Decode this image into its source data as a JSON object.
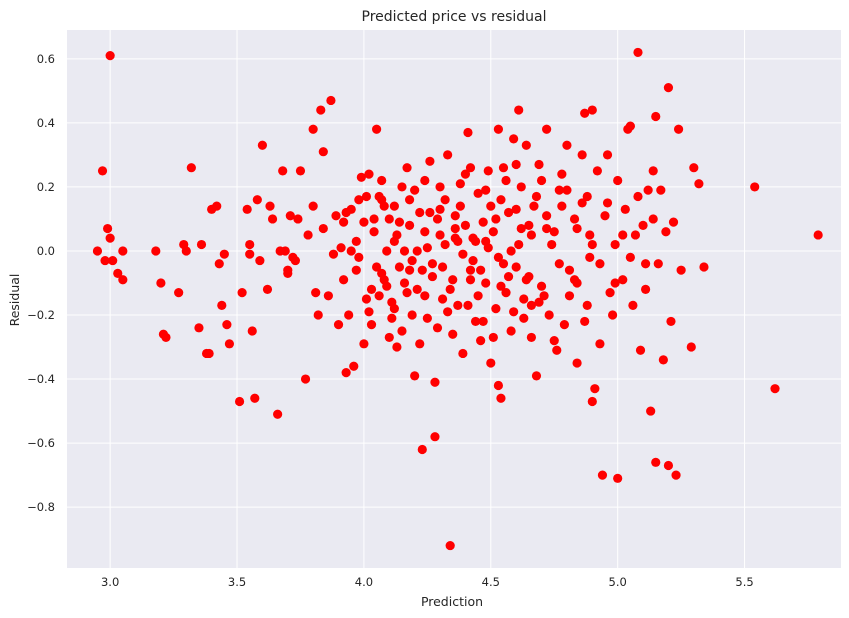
{
  "chart_data": {
    "type": "scatter",
    "title": "Predicted price vs residual",
    "xlabel": "Prediction",
    "ylabel": "Residual",
    "xlim": [
      2.83,
      5.88
    ],
    "ylim": [
      -0.99,
      0.69
    ],
    "xticks": [
      3.0,
      3.5,
      4.0,
      4.5,
      5.0,
      5.5
    ],
    "xtick_labels": [
      "3.0",
      "3.5",
      "4.0",
      "4.5",
      "5.0",
      "5.5"
    ],
    "yticks": [
      -0.8,
      -0.6,
      -0.4,
      -0.2,
      0.0,
      0.2,
      0.4,
      0.6
    ],
    "ytick_labels": [
      "−0.8",
      "−0.6",
      "−0.4",
      "−0.2",
      "0.0",
      "0.2",
      "0.4",
      "0.6"
    ],
    "grid": true,
    "background": "#EAEAF2",
    "point_color": "#FF0000",
    "points": [
      [
        3.0,
        0.61
      ],
      [
        2.97,
        0.25
      ],
      [
        2.95,
        0.0
      ],
      [
        2.98,
        -0.03
      ],
      [
        2.99,
        0.07
      ],
      [
        3.0,
        0.04
      ],
      [
        3.01,
        -0.03
      ],
      [
        3.03,
        -0.07
      ],
      [
        3.05,
        -0.09
      ],
      [
        3.05,
        0.0
      ],
      [
        3.18,
        0.0
      ],
      [
        3.2,
        -0.1
      ],
      [
        3.21,
        -0.26
      ],
      [
        3.22,
        -0.27
      ],
      [
        3.27,
        -0.13
      ],
      [
        3.29,
        0.02
      ],
      [
        3.3,
        0.0
      ],
      [
        3.32,
        0.26
      ],
      [
        3.35,
        -0.24
      ],
      [
        3.36,
        0.02
      ],
      [
        3.38,
        -0.32
      ],
      [
        3.39,
        -0.32
      ],
      [
        3.4,
        0.13
      ],
      [
        3.42,
        0.14
      ],
      [
        3.43,
        -0.04
      ],
      [
        3.44,
        -0.17
      ],
      [
        3.45,
        -0.01
      ],
      [
        3.46,
        -0.23
      ],
      [
        3.47,
        -0.29
      ],
      [
        3.51,
        -0.47
      ],
      [
        3.52,
        -0.13
      ],
      [
        3.54,
        0.13
      ],
      [
        3.55,
        -0.01
      ],
      [
        3.55,
        0.02
      ],
      [
        3.56,
        -0.25
      ],
      [
        3.57,
        -0.46
      ],
      [
        3.58,
        0.16
      ],
      [
        3.59,
        -0.03
      ],
      [
        3.6,
        0.33
      ],
      [
        3.62,
        -0.12
      ],
      [
        3.63,
        0.14
      ],
      [
        3.64,
        0.1
      ],
      [
        3.66,
        -0.51
      ],
      [
        3.67,
        -0.0
      ],
      [
        3.68,
        0.25
      ],
      [
        3.69,
        0.0
      ],
      [
        3.7,
        -0.06
      ],
      [
        3.7,
        -0.07
      ],
      [
        3.71,
        0.11
      ],
      [
        3.72,
        -0.02
      ],
      [
        3.73,
        -0.03
      ],
      [
        3.74,
        0.1
      ],
      [
        3.75,
        0.25
      ],
      [
        3.77,
        -0.4
      ],
      [
        3.78,
        0.05
      ],
      [
        3.8,
        0.14
      ],
      [
        3.8,
        0.38
      ],
      [
        3.81,
        -0.13
      ],
      [
        3.82,
        -0.2
      ],
      [
        3.83,
        0.44
      ],
      [
        3.84,
        0.31
      ],
      [
        3.84,
        0.07
      ],
      [
        3.86,
        -0.14
      ],
      [
        3.87,
        0.47
      ],
      [
        3.88,
        -0.01
      ],
      [
        3.89,
        0.11
      ],
      [
        3.9,
        -0.23
      ],
      [
        3.91,
        0.01
      ],
      [
        3.92,
        0.09
      ],
      [
        3.93,
        0.12
      ],
      [
        3.93,
        -0.38
      ],
      [
        3.94,
        -0.2
      ],
      [
        3.95,
        0.0
      ],
      [
        3.96,
        -0.36
      ],
      [
        3.97,
        0.03
      ],
      [
        3.98,
        0.16
      ],
      [
        3.99,
        0.23
      ],
      [
        4.0,
        -0.29
      ],
      [
        4.01,
        0.17
      ],
      [
        4.02,
        -0.19
      ],
      [
        4.03,
        -0.12
      ],
      [
        4.04,
        0.06
      ],
      [
        4.05,
        0.38
      ],
      [
        4.06,
        -0.14
      ],
      [
        4.07,
        0.22
      ],
      [
        4.08,
        -0.09
      ],
      [
        4.09,
        0.0
      ],
      [
        4.1,
        0.1
      ],
      [
        4.11,
        -0.16
      ],
      [
        4.12,
        0.14
      ],
      [
        4.13,
        -0.3
      ],
      [
        4.14,
        -0.05
      ],
      [
        4.15,
        0.2
      ],
      [
        4.16,
        -0.1
      ],
      [
        4.17,
        0.26
      ],
      [
        4.18,
        0.16
      ],
      [
        4.19,
        -0.2
      ],
      [
        4.2,
        -0.39
      ],
      [
        4.21,
        0.0
      ],
      [
        4.22,
        0.12
      ],
      [
        4.23,
        -0.62
      ],
      [
        4.24,
        0.06
      ],
      [
        4.25,
        -0.21
      ],
      [
        4.26,
        0.28
      ],
      [
        4.27,
        -0.04
      ],
      [
        4.28,
        -0.41
      ],
      [
        4.28,
        -0.58
      ],
      [
        4.29,
        0.1
      ],
      [
        4.3,
        0.2
      ],
      [
        4.31,
        -0.15
      ],
      [
        4.32,
        0.02
      ],
      [
        4.33,
        0.3
      ],
      [
        4.34,
        -0.92
      ],
      [
        4.35,
        -0.26
      ],
      [
        4.36,
        0.07
      ],
      [
        4.37,
        -0.17
      ],
      [
        4.38,
        0.14
      ],
      [
        4.39,
        -0.32
      ],
      [
        4.4,
        0.24
      ],
      [
        4.41,
        0.37
      ],
      [
        4.42,
        -0.06
      ],
      [
        4.43,
        0.04
      ],
      [
        4.44,
        -0.22
      ],
      [
        4.45,
        0.18
      ],
      [
        4.46,
        -0.28
      ],
      [
        4.47,
        0.09
      ],
      [
        4.48,
        -0.1
      ],
      [
        4.49,
        0.25
      ],
      [
        4.5,
        -0.35
      ],
      [
        4.51,
        0.06
      ],
      [
        4.52,
        -0.18
      ],
      [
        4.53,
        0.38
      ],
      [
        4.53,
        -0.42
      ],
      [
        4.54,
        -0.46
      ],
      [
        4.55,
        0.26
      ],
      [
        4.56,
        -0.13
      ],
      [
        4.57,
        0.12
      ],
      [
        4.58,
        -0.25
      ],
      [
        4.59,
        0.35
      ],
      [
        4.6,
        -0.05
      ],
      [
        4.61,
        0.44
      ],
      [
        4.62,
        0.2
      ],
      [
        4.63,
        -0.15
      ],
      [
        4.64,
        0.33
      ],
      [
        4.65,
        0.08
      ],
      [
        4.66,
        -0.27
      ],
      [
        4.67,
        0.14
      ],
      [
        4.68,
        -0.39
      ],
      [
        4.69,
        0.27
      ],
      [
        4.7,
        -0.11
      ],
      [
        4.72,
        0.38
      ],
      [
        4.73,
        -0.2
      ],
      [
        4.75,
        0.06
      ],
      [
        4.76,
        -0.31
      ],
      [
        4.77,
        0.19
      ],
      [
        4.79,
        -0.23
      ],
      [
        4.8,
        0.33
      ],
      [
        4.81,
        -0.06
      ],
      [
        4.83,
        0.1
      ],
      [
        4.84,
        -0.35
      ],
      [
        4.86,
        0.15
      ],
      [
        4.87,
        0.43
      ],
      [
        4.88,
        -0.17
      ],
      [
        4.89,
        0.05
      ],
      [
        4.9,
        0.44
      ],
      [
        4.9,
        -0.47
      ],
      [
        4.91,
        -0.43
      ],
      [
        4.92,
        0.25
      ],
      [
        4.93,
        -0.29
      ],
      [
        4.94,
        -0.7
      ],
      [
        4.95,
        0.11
      ],
      [
        4.96,
        0.3
      ],
      [
        4.97,
        -0.13
      ],
      [
        4.98,
        -0.2
      ],
      [
        4.99,
        0.02
      ],
      [
        5.0,
        -0.71
      ],
      [
        5.0,
        0.22
      ],
      [
        5.02,
        -0.09
      ],
      [
        5.03,
        0.13
      ],
      [
        5.04,
        0.38
      ],
      [
        5.05,
        0.39
      ],
      [
        5.06,
        -0.17
      ],
      [
        5.07,
        0.05
      ],
      [
        5.08,
        0.62
      ],
      [
        5.09,
        -0.31
      ],
      [
        5.1,
        0.08
      ],
      [
        5.11,
        -0.12
      ],
      [
        5.12,
        0.19
      ],
      [
        5.13,
        -0.5
      ],
      [
        5.14,
        0.25
      ],
      [
        5.15,
        -0.66
      ],
      [
        5.15,
        0.42
      ],
      [
        5.16,
        -0.04
      ],
      [
        5.17,
        0.19
      ],
      [
        5.18,
        -0.34
      ],
      [
        5.19,
        0.06
      ],
      [
        5.2,
        -0.67
      ],
      [
        5.2,
        0.51
      ],
      [
        5.21,
        -0.22
      ],
      [
        5.22,
        0.09
      ],
      [
        5.23,
        -0.7
      ],
      [
        5.24,
        0.38
      ],
      [
        5.25,
        -0.06
      ],
      [
        5.29,
        -0.3
      ],
      [
        5.3,
        0.26
      ],
      [
        5.32,
        0.21
      ],
      [
        5.34,
        -0.05
      ],
      [
        5.54,
        0.2
      ],
      [
        5.62,
        -0.43
      ],
      [
        5.79,
        0.05
      ],
      [
        4.02,
        0.24
      ],
      [
        4.05,
        -0.05
      ],
      [
        4.08,
        0.14
      ],
      [
        4.11,
        -0.21
      ],
      [
        4.14,
        0.09
      ],
      [
        4.17,
        -0.13
      ],
      [
        4.2,
        0.19
      ],
      [
        4.23,
        -0.06
      ],
      [
        4.26,
        0.12
      ],
      [
        4.29,
        -0.24
      ],
      [
        4.32,
        0.16
      ],
      [
        4.35,
        -0.09
      ],
      [
        4.38,
        0.21
      ],
      [
        4.41,
        -0.17
      ],
      [
        4.44,
        0.03
      ],
      [
        4.47,
        -0.22
      ],
      [
        4.5,
        0.14
      ],
      [
        4.53,
        -0.02
      ],
      [
        4.56,
        0.22
      ],
      [
        4.59,
        -0.19
      ],
      [
        4.62,
        0.07
      ],
      [
        4.65,
        -0.08
      ],
      [
        4.68,
        0.17
      ],
      [
        4.71,
        -0.14
      ],
      [
        4.74,
        0.02
      ],
      [
        4.77,
        -0.04
      ],
      [
        4.8,
        0.19
      ],
      [
        4.83,
        -0.09
      ],
      [
        4.86,
        0.3
      ],
      [
        4.89,
        -0.02
      ],
      [
        3.97,
        -0.06
      ],
      [
        4.0,
        0.09
      ],
      [
        4.03,
        -0.23
      ],
      [
        4.06,
        0.17
      ],
      [
        4.09,
        -0.11
      ],
      [
        4.12,
        0.03
      ],
      [
        4.15,
        -0.25
      ],
      [
        4.18,
        0.08
      ],
      [
        4.21,
        -0.12
      ],
      [
        4.24,
        0.22
      ],
      [
        4.27,
        -0.08
      ],
      [
        4.3,
        0.05
      ],
      [
        4.33,
        -0.19
      ],
      [
        4.36,
        0.11
      ],
      [
        4.39,
        -0.01
      ],
      [
        4.42,
        0.26
      ],
      [
        4.45,
        -0.14
      ],
      [
        4.48,
        0.03
      ],
      [
        4.51,
        -0.27
      ],
      [
        4.54,
        0.16
      ],
      [
        4.57,
        -0.08
      ],
      [
        4.6,
        0.27
      ],
      [
        4.63,
        -0.21
      ],
      [
        4.66,
        0.05
      ],
      [
        4.69,
        -0.16
      ],
      [
        4.72,
        0.11
      ],
      [
        4.75,
        -0.28
      ],
      [
        4.78,
        0.24
      ],
      [
        4.81,
        -0.14
      ],
      [
        4.84,
        0.07
      ],
      [
        4.87,
        -0.22
      ],
      [
        4.9,
        0.02
      ],
      [
        4.93,
        -0.04
      ],
      [
        4.96,
        0.15
      ],
      [
        4.99,
        -0.1
      ],
      [
        5.02,
        0.05
      ],
      [
        5.05,
        -0.02
      ],
      [
        5.08,
        0.17
      ],
      [
        5.11,
        -0.04
      ],
      [
        5.14,
        0.1
      ],
      [
        4.07,
        -0.07
      ],
      [
        4.13,
        0.05
      ],
      [
        4.19,
        -0.03
      ],
      [
        4.25,
        0.01
      ],
      [
        4.31,
        -0.05
      ],
      [
        4.37,
        0.03
      ],
      [
        4.43,
        -0.03
      ],
      [
        4.49,
        0.01
      ],
      [
        4.55,
        -0.04
      ],
      [
        4.61,
        0.02
      ],
      [
        4.1,
        -0.27
      ],
      [
        4.16,
        0.0
      ],
      [
        4.22,
        -0.29
      ],
      [
        4.34,
        -0.12
      ],
      [
        4.4,
        0.08
      ],
      [
        4.46,
        -0.06
      ],
      [
        4.52,
        0.1
      ],
      [
        4.58,
        0.0
      ],
      [
        4.64,
        -0.09
      ],
      [
        4.7,
        0.22
      ],
      [
        3.92,
        -0.09
      ],
      [
        3.95,
        0.13
      ],
      [
        3.98,
        -0.02
      ],
      [
        4.01,
        -0.15
      ],
      [
        4.04,
        0.1
      ],
      [
        4.07,
        0.16
      ],
      [
        4.12,
        -0.18
      ],
      [
        4.18,
        -0.06
      ],
      [
        4.24,
        -0.14
      ],
      [
        4.3,
        0.13
      ],
      [
        4.36,
        0.04
      ],
      [
        4.42,
        -0.09
      ],
      [
        4.48,
        0.19
      ],
      [
        4.54,
        -0.11
      ],
      [
        4.6,
        0.13
      ],
      [
        4.66,
        -0.17
      ],
      [
        4.72,
        0.07
      ],
      [
        4.78,
        0.14
      ],
      [
        4.84,
        -0.1
      ],
      [
        4.88,
        0.17
      ]
    ]
  }
}
